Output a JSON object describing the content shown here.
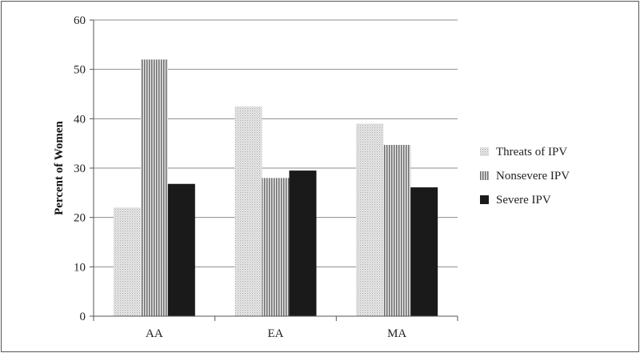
{
  "chart_data": {
    "type": "bar",
    "title": "",
    "xlabel": "",
    "ylabel": "Percent of Women",
    "ylim": [
      0,
      60
    ],
    "yticks": [
      0,
      10,
      20,
      30,
      40,
      50,
      60
    ],
    "grid": true,
    "legend_position": "right",
    "categories": [
      "AA",
      "EA",
      "MA"
    ],
    "series": [
      {
        "name": "Threats of IPV",
        "values": [
          22,
          42.5,
          39
        ],
        "pattern": "dots",
        "color": "#d8d8d8"
      },
      {
        "name": "Nonsevere IPV",
        "values": [
          52,
          28,
          34.7
        ],
        "pattern": "vertical-stripes",
        "color": "#9a9a9a"
      },
      {
        "name": "Severe IPV",
        "values": [
          26.8,
          29.5,
          26.1
        ],
        "pattern": "solid",
        "color": "#1a1a1a"
      }
    ]
  }
}
